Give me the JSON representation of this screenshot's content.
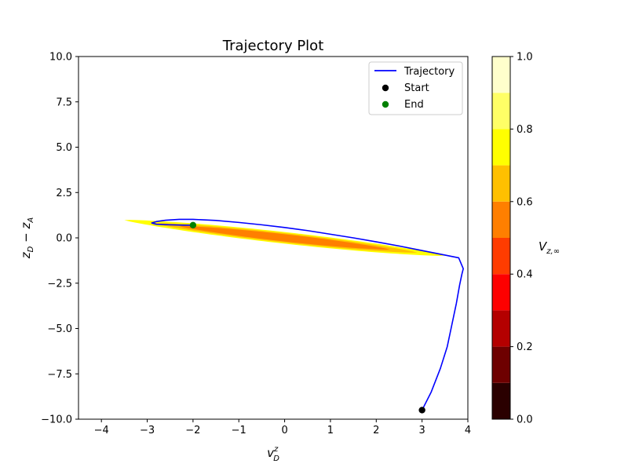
{
  "chart_data": {
    "type": "line",
    "title": "Trajectory Plot",
    "xlabel": {
      "base": "v",
      "sup": "z",
      "sub": "D"
    },
    "ylabel": {
      "base1": "z",
      "sub1": "D",
      "op": " − ",
      "base2": "z",
      "sub2": "A"
    },
    "xlim": [
      -4.5,
      4
    ],
    "ylim": [
      -10,
      10
    ],
    "xticks": [
      -4,
      -3,
      -2,
      -1,
      0,
      1,
      2,
      3,
      4
    ],
    "yticks": [
      -10.0,
      -7.5,
      -5.0,
      -2.5,
      0.0,
      2.5,
      5.0,
      7.5,
      10.0
    ],
    "ytick_labels": [
      "−10.0",
      "−7.5",
      "−5.0",
      "−2.5",
      "0.0",
      "2.5",
      "5.0",
      "7.5",
      "10.0"
    ],
    "xtick_labels": [
      "−4",
      "−3",
      "−2",
      "−1",
      "0",
      "1",
      "2",
      "3",
      "4"
    ],
    "grid": false,
    "legend_placement": "top-right",
    "legend": [
      {
        "label": "Trajectory",
        "kind": "line",
        "color": "#0000ff"
      },
      {
        "label": "Start",
        "kind": "marker",
        "color": "#000000"
      },
      {
        "label": "End",
        "kind": "marker",
        "color": "#008000"
      }
    ],
    "series": [
      {
        "name": "Trajectory",
        "color": "#0000ff",
        "x": [
          3.0,
          3.2,
          3.4,
          3.55,
          3.65,
          3.75,
          3.82,
          3.87,
          3.9,
          3.8,
          3.5,
          3.0,
          2.5,
          2.0,
          1.5,
          1.0,
          0.5,
          0.0,
          -0.5,
          -1.0,
          -1.5,
          -2.0,
          -2.3,
          -2.6,
          -2.8,
          -2.9,
          -2.8,
          -2.5,
          -2.2,
          -2.0
        ],
        "y": [
          -9.5,
          -8.5,
          -7.2,
          -6.0,
          -4.8,
          -3.6,
          -2.6,
          -2.0,
          -1.7,
          -1.1,
          -0.95,
          -0.7,
          -0.45,
          -0.22,
          0.0,
          0.2,
          0.4,
          0.57,
          0.72,
          0.85,
          0.96,
          1.02,
          1.02,
          0.97,
          0.9,
          0.82,
          0.75,
          0.72,
          0.7,
          0.7
        ]
      },
      {
        "name": "Start",
        "type": "scatter",
        "color": "#000000",
        "x": [
          3.0
        ],
        "y": [
          -9.5
        ]
      },
      {
        "name": "End",
        "type": "scatter",
        "color": "#008000",
        "x": [
          -2.0
        ],
        "y": [
          0.7
        ]
      }
    ],
    "contour": {
      "name": "V_{z,∞}",
      "center": [
        0.0,
        0.0
      ],
      "slope": -0.28,
      "half_length_outer": 3.5,
      "half_width_outer": 0.32,
      "half_length_inner": 2.3,
      "half_width_inner": 0.2,
      "outer_color": "#ffff00",
      "mid_color": "#ffc000",
      "inner_color": "#ff7f00"
    },
    "colorbar": {
      "label": {
        "base": "V",
        "sub": "z,∞"
      },
      "range": [
        0.0,
        1.0
      ],
      "ticks": [
        0.0,
        0.2,
        0.4,
        0.6,
        0.8,
        1.0
      ],
      "tick_labels": [
        "0.0",
        "0.2",
        "0.4",
        "0.6",
        "0.8",
        "1.0"
      ],
      "levels": [
        {
          "from": 0.0,
          "to": 0.1,
          "color": "#2a0000"
        },
        {
          "from": 0.1,
          "to": 0.2,
          "color": "#6e0000"
        },
        {
          "from": 0.2,
          "to": 0.3,
          "color": "#b40000"
        },
        {
          "from": 0.3,
          "to": 0.4,
          "color": "#fd0000"
        },
        {
          "from": 0.4,
          "to": 0.5,
          "color": "#ff3c00"
        },
        {
          "from": 0.5,
          "to": 0.6,
          "color": "#ff7f00"
        },
        {
          "from": 0.6,
          "to": 0.7,
          "color": "#ffc000"
        },
        {
          "from": 0.7,
          "to": 0.8,
          "color": "#ffff00"
        },
        {
          "from": 0.8,
          "to": 0.9,
          "color": "#ffff66"
        },
        {
          "from": 0.9,
          "to": 1.0,
          "color": "#ffffcc"
        }
      ]
    }
  }
}
